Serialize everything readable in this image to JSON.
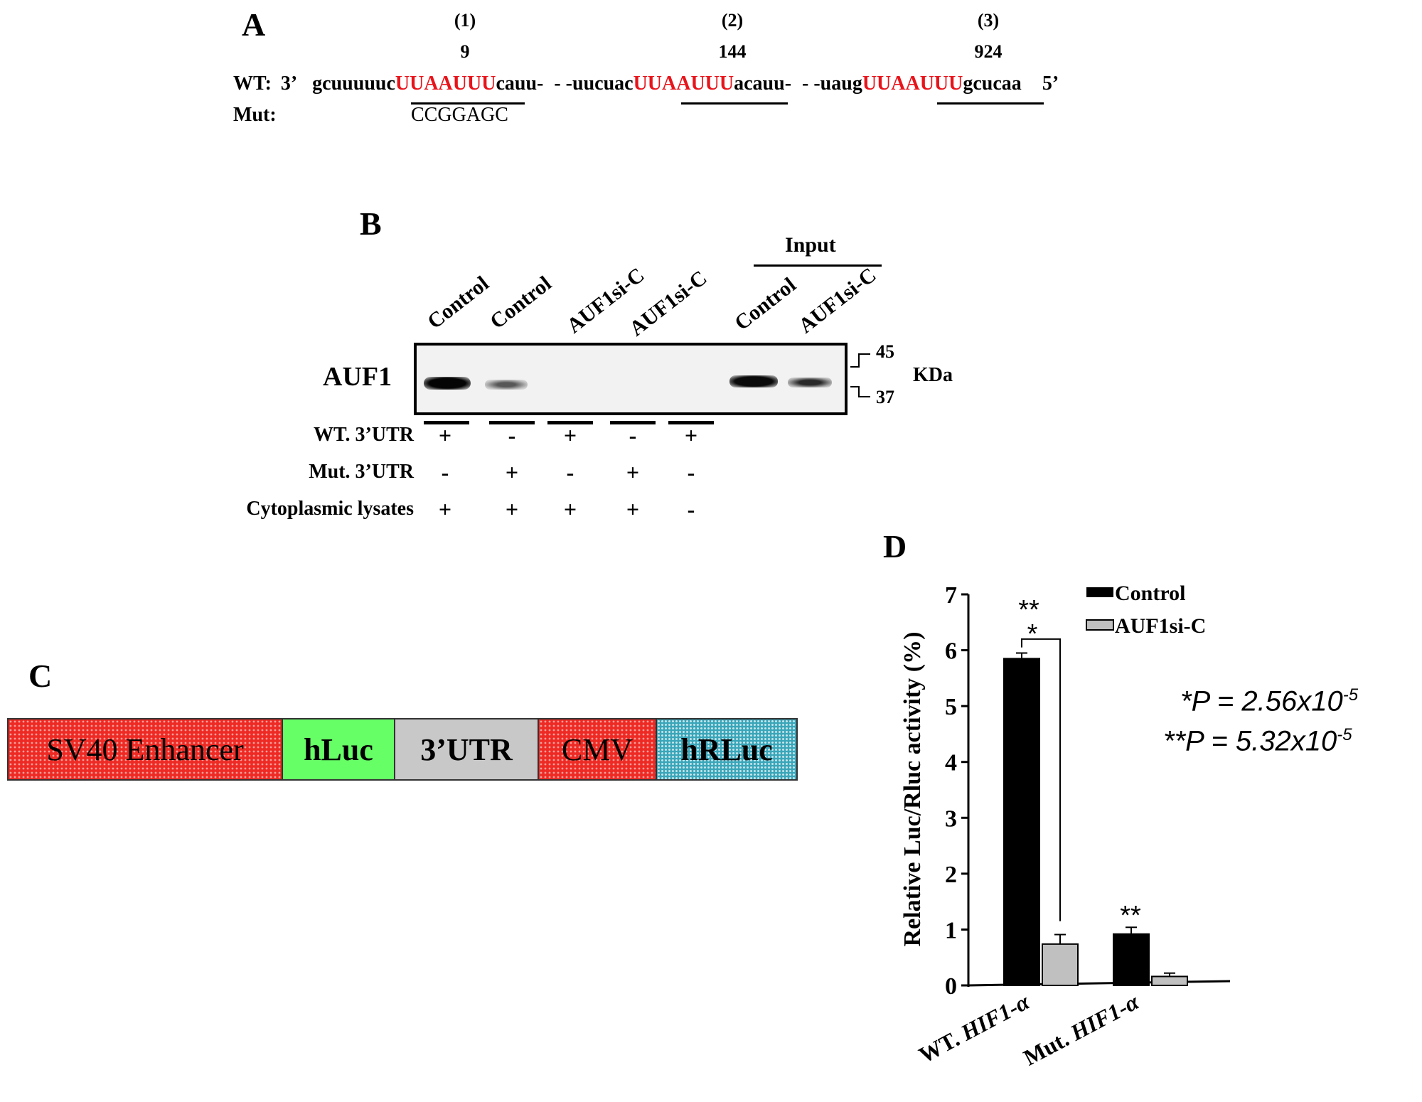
{
  "panel_a": {
    "letter": "A",
    "sites": [
      {
        "number": "(1)",
        "position": "9"
      },
      {
        "number": "(2)",
        "position": "144"
      },
      {
        "number": "(3)",
        "position": "924"
      }
    ],
    "wt_label": "WT:",
    "three_prime": "3’",
    "segments": [
      {
        "text": "gcuuuuuc",
        "red": false
      },
      {
        "text": "UUAAUUU",
        "red": true
      },
      {
        "text": "cauu-",
        "red": false
      },
      {
        "text": "- -uucuac",
        "red": false
      },
      {
        "text": "UUAAUUU",
        "red": true
      },
      {
        "text": "acauu-",
        "red": false
      },
      {
        "text": "- -uaug",
        "red": false
      },
      {
        "text": "UUAAUUU",
        "red": true
      },
      {
        "text": "gcucaa",
        "red": false
      }
    ],
    "five_prime": "5’",
    "mut_label": "Mut:",
    "mut_sequence": "CCGGAGC"
  },
  "panel_b": {
    "letter": "B",
    "input_label": "Input",
    "lanes": [
      "Control",
      "Control",
      "AUF1si-C",
      "AUF1si-C",
      "Control",
      "AUF1si-C"
    ],
    "protein": "AUF1",
    "markers": [
      "45",
      "37"
    ],
    "unit": "KDa",
    "rows": [
      {
        "label": "WT. 3’UTR",
        "signs": [
          "+",
          "-",
          "+",
          "-",
          "+"
        ]
      },
      {
        "label": "Mut. 3’UTR",
        "signs": [
          "-",
          "+",
          "-",
          "+",
          "-"
        ]
      },
      {
        "label": "Cytoplasmic lysates",
        "signs": [
          "+",
          "+",
          "+",
          "+",
          "-"
        ]
      }
    ]
  },
  "panel_c": {
    "letter": "C",
    "elements": [
      {
        "label": "SV40 Enhancer",
        "color": "#ee2a24"
      },
      {
        "label": "hLuc",
        "color": "#66ff66"
      },
      {
        "label": "3’UTR",
        "color": "#c8c8c8"
      },
      {
        "label": "CMV",
        "color": "#ee2a24"
      },
      {
        "label": "hRLuc",
        "color": "#3aa6b9"
      }
    ]
  },
  "panel_d": {
    "letter": "D",
    "p_values": [
      {
        "stars": "*",
        "label": "P = 2.56x10",
        "exp": "-5"
      },
      {
        "stars": "**",
        "label": "P = 5.32x10",
        "exp": "-5"
      }
    ],
    "sig_wt_top": "**",
    "sig_wt_bottom": "*",
    "sig_mut": "**"
  },
  "chart_data": {
    "type": "bar",
    "ylabel": "Relative Luc/Rluc activity (%)",
    "xlabel": "",
    "ylim": [
      0,
      7
    ],
    "yticks": [
      "0",
      "1",
      "2",
      "3",
      "4",
      "5",
      "6",
      "7"
    ],
    "categories": [
      "WT. HIF1-α",
      "Mut. HIF1-α"
    ],
    "category_prefix": [
      "WT. ",
      "Mut. "
    ],
    "category_italic": [
      "HIF1-α",
      "HIF1-α"
    ],
    "legend_position": "top-right",
    "series": [
      {
        "name": "Control",
        "color": "#000000",
        "values": [
          5.85,
          0.92
        ],
        "errors": [
          0.1,
          0.12
        ]
      },
      {
        "name": "AUF1si-C",
        "color": "#c0c0c0",
        "values": [
          0.74,
          0.16
        ],
        "errors": [
          0.17,
          0.06
        ]
      }
    ]
  }
}
